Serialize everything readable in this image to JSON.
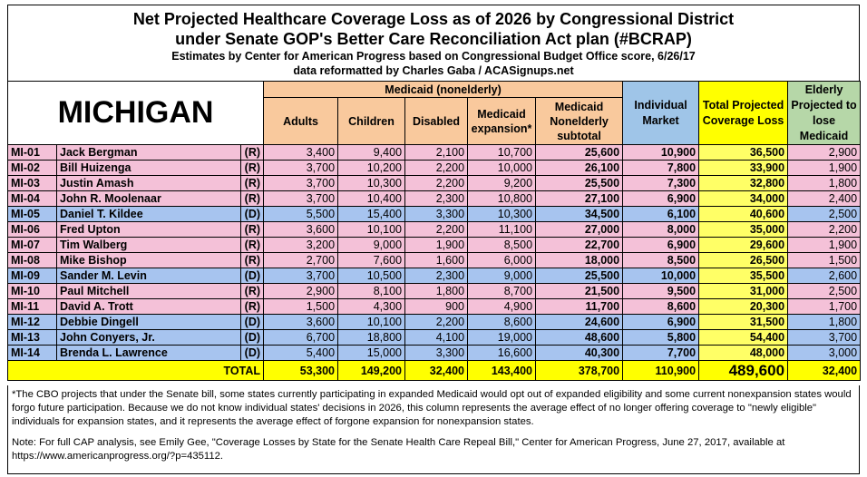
{
  "header": {
    "title": [
      "Net Projected Healthcare Coverage Loss as of 2026 by Congressional District",
      "under Senate GOP's Better Care Reconciliation Act plan (#BCRAP)"
    ],
    "subtitle": [
      "Estimates by Center for American Progress based on Congressional Budget Office score, 6/26/17",
      "data reformatted by Charles Gaba / ACASignups.net"
    ]
  },
  "table": {
    "state": "MICHIGAN",
    "group_header": "Medicaid (nonelderly)",
    "columns": [
      "Adults",
      "Children",
      "Disabled",
      "Medicaid expansion*",
      "Medicaid Nonelderly subtotal",
      "Individual Market",
      "Total Projected Coverage Loss",
      "Elderly Projected to lose Medicaid"
    ],
    "party_colors": {
      "(R)": "#f4c1d8",
      "(D)": "#a7c4ef"
    },
    "rows": [
      [
        "MI-01",
        "Jack Bergman",
        "(R)",
        "3,400",
        "9,400",
        "2,100",
        "10,700",
        "25,600",
        "10,900",
        "36,500",
        "2,900"
      ],
      [
        "MI-02",
        "Bill Huizenga",
        "(R)",
        "3,700",
        "10,200",
        "2,200",
        "10,000",
        "26,100",
        "7,800",
        "33,900",
        "1,900"
      ],
      [
        "MI-03",
        "Justin Amash",
        "(R)",
        "3,700",
        "10,300",
        "2,200",
        "9,200",
        "25,500",
        "7,300",
        "32,800",
        "1,800"
      ],
      [
        "MI-04",
        "John R. Moolenaar",
        "(R)",
        "3,700",
        "10,400",
        "2,300",
        "10,800",
        "27,100",
        "6,900",
        "34,000",
        "2,400"
      ],
      [
        "MI-05",
        "Daniel T. Kildee",
        "(D)",
        "5,500",
        "15,400",
        "3,300",
        "10,300",
        "34,500",
        "6,100",
        "40,600",
        "2,500"
      ],
      [
        "MI-06",
        "Fred Upton",
        "(R)",
        "3,600",
        "10,100",
        "2,200",
        "11,100",
        "27,000",
        "8,000",
        "35,000",
        "2,200"
      ],
      [
        "MI-07",
        "Tim Walberg",
        "(R)",
        "3,200",
        "9,000",
        "1,900",
        "8,500",
        "22,700",
        "6,900",
        "29,600",
        "1,900"
      ],
      [
        "MI-08",
        "Mike Bishop",
        "(R)",
        "2,700",
        "7,600",
        "1,600",
        "6,000",
        "18,000",
        "8,500",
        "26,500",
        "1,500"
      ],
      [
        "MI-09",
        "Sander M. Levin",
        "(D)",
        "3,700",
        "10,500",
        "2,300",
        "9,000",
        "25,500",
        "10,000",
        "35,500",
        "2,600"
      ],
      [
        "MI-10",
        "Paul Mitchell",
        "(R)",
        "2,900",
        "8,100",
        "1,800",
        "8,700",
        "21,500",
        "9,500",
        "31,000",
        "2,500"
      ],
      [
        "MI-11",
        "David A. Trott",
        "(R)",
        "1,500",
        "4,300",
        "900",
        "4,900",
        "11,700",
        "8,600",
        "20,300",
        "1,700"
      ],
      [
        "MI-12",
        "Debbie Dingell",
        "(D)",
        "3,600",
        "10,100",
        "2,200",
        "8,600",
        "24,600",
        "6,900",
        "31,500",
        "1,800"
      ],
      [
        "MI-13",
        "John Conyers, Jr.",
        "(D)",
        "6,700",
        "18,800",
        "4,100",
        "19,000",
        "48,600",
        "5,800",
        "54,400",
        "3,700"
      ],
      [
        "MI-14",
        "Brenda L. Lawrence",
        "(D)",
        "5,400",
        "15,000",
        "3,300",
        "16,600",
        "40,300",
        "7,700",
        "48,000",
        "3,000"
      ]
    ],
    "total_label": "TOTAL",
    "totals": [
      "53,300",
      "149,200",
      "32,400",
      "143,400",
      "378,700",
      "110,900",
      "489,600",
      "32,400"
    ]
  },
  "footnotes": [
    "*The CBO projects that under the Senate bill, some states currently participating in expanded Medicaid would opt out of expanded eligibility and some current nonexpansion states would forgo future participation. Because we do not know individual states' decisions in 2026, this column represents the average effect of no longer offering coverage to \"newly eligible\" individuals for expansion states, and it represents the average effect of forgone expansion for nonexpansion states.",
    "Note: For full CAP analysis, see Emily Gee, \"Coverage Losses by State for the Senate Health Care Repeal Bill,\" Center for American Progress, June 27, 2017, available at https://www.americanprogress.org/?p=435112."
  ]
}
